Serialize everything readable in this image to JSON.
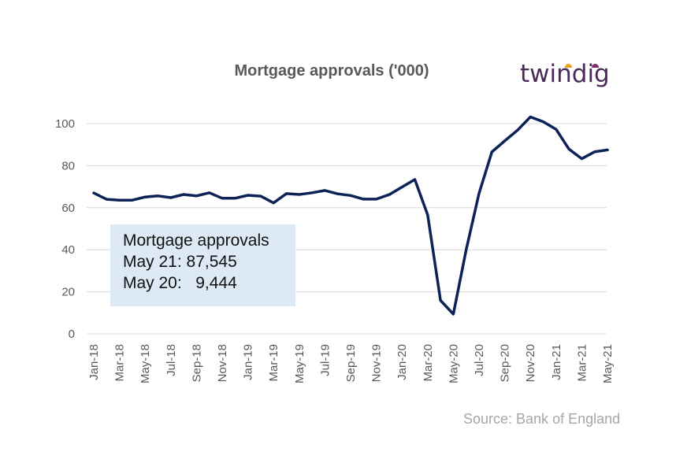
{
  "brand": {
    "logo_text": "twindig",
    "accent_colors": [
      "#e8a31e",
      "#7b2f6e"
    ],
    "text_color": "#4a2a57"
  },
  "callout": {
    "title": "Mortgage approvals",
    "line1": "May 21: 87,545",
    "line2": "May 20:   9,444"
  },
  "source": "Source: Bank of England",
  "chart_data": {
    "type": "line",
    "title": "Mortgage approvals  ('000)",
    "xlabel": "",
    "ylabel": "",
    "ylim": [
      0,
      100
    ],
    "yticks": [
      0,
      20,
      40,
      60,
      80,
      100
    ],
    "grid": true,
    "x": [
      "Jan-18",
      "Feb-18",
      "Mar-18",
      "Apr-18",
      "May-18",
      "Jun-18",
      "Jul-18",
      "Aug-18",
      "Sep-18",
      "Oct-18",
      "Nov-18",
      "Dec-18",
      "Jan-19",
      "Feb-19",
      "Mar-19",
      "Apr-19",
      "May-19",
      "Jun-19",
      "Jul-19",
      "Aug-19",
      "Sep-19",
      "Oct-19",
      "Nov-19",
      "Dec-19",
      "Jan-20",
      "Feb-20",
      "Mar-20",
      "Apr-20",
      "May-20",
      "Jun-20",
      "Jul-20",
      "Aug-20",
      "Sep-20",
      "Oct-20",
      "Nov-20",
      "Dec-20",
      "Jan-21",
      "Feb-21",
      "Mar-21",
      "Apr-21",
      "May-21"
    ],
    "x_tick_labels": [
      "Jan-18",
      "Mar-18",
      "May-18",
      "Jul-18",
      "Sep-18",
      "Nov-18",
      "Jan-19",
      "Mar-19",
      "May-19",
      "Jul-19",
      "Sep-19",
      "Nov-19",
      "Jan-20",
      "Mar-20",
      "May-20",
      "Jul-20",
      "Sep-20",
      "Nov-20",
      "Jan-21",
      "Mar-21",
      "May-21"
    ],
    "series": [
      {
        "name": "",
        "color": "#0d2257",
        "values": [
          67,
          64,
          63.6,
          63.6,
          65.1,
          65.6,
          64.8,
          66.3,
          65.6,
          67.1,
          64.5,
          64.5,
          65.9,
          65.5,
          62.3,
          66.7,
          66.3,
          67.1,
          68.2,
          66.6,
          65.8,
          64.1,
          64.1,
          66.2,
          69.8,
          73.4,
          56.6,
          15.9,
          9.4,
          40,
          66.8,
          86.5,
          91.8,
          96.9,
          103.2,
          100.9,
          97.3,
          87.9,
          83.3,
          86.6,
          87.5
        ]
      }
    ]
  }
}
